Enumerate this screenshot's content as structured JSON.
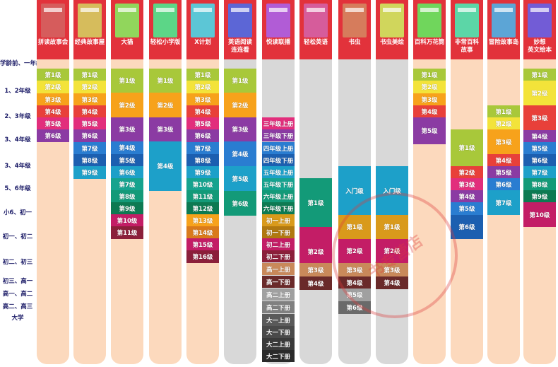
{
  "grades": [
    "学龄前、一年级",
    "1、2年级",
    "2、3年级",
    "3、4年级",
    "3、4年级",
    "5、6年级",
    "小6、初一",
    "初一、初二",
    "初二、初三",
    "初三、高一",
    "高一、高二",
    "高二、高三",
    "大学"
  ],
  "colors": {
    "levels": [
      "#a8c83a",
      "#f4b400",
      "#e8403a",
      "#c31d66",
      "#7a3a9a",
      "#2a7dd1",
      "#1da0c9",
      "#139a78",
      "#3c8c3a",
      "#8cbe2e",
      "#e88820",
      "#c82a78",
      "#6a2a2a"
    ],
    "ladder": [
      "#a8c83a",
      "#f3e33a",
      "#f7a21b",
      "#e8403a",
      "#e22e7c",
      "#8b3ba3"
    ]
  },
  "columns": [
    {
      "title": "拼读故事会",
      "head": "#e2323b",
      "track": "#fcd9bd",
      "cells": [
        [
          "第1级",
          97,
          18,
          "#a8c83a"
        ],
        [
          "第2级",
          114,
          18,
          "#f3e33a"
        ],
        [
          "第3级",
          132,
          18,
          "#f7a21b"
        ],
        [
          "第4级",
          149,
          18,
          "#e8403a"
        ],
        [
          "第5级",
          166,
          18,
          "#e22e7c"
        ],
        [
          "第6级",
          183,
          18,
          "#8b3ba3"
        ]
      ]
    },
    {
      "title": "经典故事屋",
      "head": "#e2323b",
      "track": "#fcd9bd",
      "cells": [
        [
          "第1级",
          97,
          18,
          "#a8c83a"
        ],
        [
          "第2级",
          114,
          18,
          "#f3e33a"
        ],
        [
          "第3级",
          132,
          18,
          "#f7a21b"
        ],
        [
          "第4级",
          149,
          18,
          "#e8403a"
        ],
        [
          "第5级",
          166,
          18,
          "#e22e7c"
        ],
        [
          "第6级",
          183,
          18,
          "#8b3ba3"
        ],
        [
          "第7级",
          201,
          18,
          "#2a7dd1"
        ],
        [
          "第8级",
          218,
          18,
          "#1c5fb0"
        ],
        [
          "第9级",
          235,
          18,
          "#1da0c9"
        ]
      ]
    },
    {
      "title": "大猫",
      "head": "#e2323b",
      "track": "#fcd9bd",
      "cells": [
        [
          "第1级",
          97,
          34,
          "#a8c83a"
        ],
        [
          "第2级",
          131,
          35,
          "#f7a21b"
        ],
        [
          "第3级",
          166,
          34,
          "#8b3ba3"
        ],
        [
          "第4级",
          200,
          18,
          "#2a7dd1"
        ],
        [
          "第5级",
          218,
          18,
          "#1c5fb0"
        ],
        [
          "第6级",
          235,
          18,
          "#1da0c9"
        ],
        [
          "第7级",
          252,
          18,
          "#15a38f"
        ],
        [
          "第8级",
          269,
          18,
          "#139a78"
        ],
        [
          "第9级",
          286,
          18,
          "#0d7a52"
        ],
        [
          "第10级",
          303,
          18,
          "#c31d66"
        ],
        [
          "第11级",
          320,
          18,
          "#8b1f3a"
        ]
      ]
    },
    {
      "title": "轻松小学版",
      "head": "#e2323b",
      "track": "#fcd9bd",
      "cells": [
        [
          "第1级",
          97,
          34,
          "#a8c83a"
        ],
        [
          "第2级",
          131,
          35,
          "#f7a21b"
        ],
        [
          "第3级",
          166,
          34,
          "#8b3ba3"
        ],
        [
          "第4级",
          200,
          70,
          "#1da0c9"
        ]
      ]
    },
    {
      "title": "X计划",
      "head": "#e2323b",
      "track": "#fcd9bd",
      "cells": [
        [
          "第1级",
          97,
          18,
          "#a8c83a"
        ],
        [
          "第2级",
          114,
          18,
          "#f3e33a"
        ],
        [
          "第3级",
          132,
          18,
          "#f7a21b"
        ],
        [
          "第4级",
          149,
          18,
          "#e8403a"
        ],
        [
          "第5级",
          166,
          18,
          "#e22e7c"
        ],
        [
          "第6级",
          183,
          18,
          "#8b3ba3"
        ],
        [
          "第7级",
          201,
          18,
          "#2a7dd1"
        ],
        [
          "第8级",
          218,
          18,
          "#1c5fb0"
        ],
        [
          "第9级",
          235,
          18,
          "#1da0c9"
        ],
        [
          "第10级",
          252,
          18,
          "#15a38f"
        ],
        [
          "第11级",
          269,
          18,
          "#139a78"
        ],
        [
          "第12级",
          286,
          18,
          "#0d7a52"
        ],
        [
          "第13级",
          303,
          18,
          "#f7a21b"
        ],
        [
          "第14级",
          320,
          18,
          "#d97a1b"
        ],
        [
          "第15级",
          337,
          18,
          "#c31d66"
        ],
        [
          "第16级",
          354,
          18,
          "#8b1f3a"
        ]
      ]
    },
    {
      "title": "英语阅读\n连连看",
      "head": "#e2323b",
      "track": "#d8d8d8",
      "cells": [
        [
          "第1级",
          97,
          34,
          "#a8c83a"
        ],
        [
          "第2级",
          131,
          35,
          "#f7a21b"
        ],
        [
          "第3级",
          166,
          34,
          "#8b3ba3"
        ],
        [
          "第4级",
          200,
          35,
          "#2a7dd1"
        ],
        [
          "第5级",
          235,
          35,
          "#1da0c9"
        ],
        [
          "第6级",
          270,
          35,
          "#139a78"
        ]
      ]
    },
    {
      "title": "悦读联播",
      "head": "#e2323b",
      "track": "#d8d8d8",
      "cells": [
        [
          "三年级上册",
          166,
          17,
          "#e22e7c"
        ],
        [
          "三年级下册",
          183,
          17,
          "#8b3ba3"
        ],
        [
          "四年级上册",
          201,
          17,
          "#2a7dd1"
        ],
        [
          "四年级下册",
          218,
          17,
          "#1c5fb0"
        ],
        [
          "五年级上册",
          235,
          17,
          "#1da0c9"
        ],
        [
          "五年级下册",
          252,
          17,
          "#15a38f"
        ],
        [
          "六年级上册",
          269,
          17,
          "#139a78"
        ],
        [
          "六年级下册",
          286,
          17,
          "#0d7a52"
        ],
        [
          "初一上册",
          303,
          17,
          "#d99a1b"
        ],
        [
          "初一下册",
          320,
          17,
          "#b07810"
        ],
        [
          "初二上册",
          337,
          17,
          "#c31d66"
        ],
        [
          "初二下册",
          354,
          17,
          "#8b1f3a"
        ],
        [
          "高一上册",
          372,
          17,
          "#c9895a"
        ],
        [
          "高一下册",
          390,
          17,
          "#6a2a2a"
        ],
        [
          "高二上册",
          408,
          17,
          "#a0a0a0"
        ],
        [
          "高二下册",
          426,
          17,
          "#808080"
        ],
        [
          "大一上册",
          444,
          17,
          "#5a5a5a"
        ],
        [
          "大一下册",
          461,
          17,
          "#4a4a4a"
        ],
        [
          "大二上册",
          478,
          17,
          "#3a3a3a"
        ],
        [
          "大二下册",
          495,
          17,
          "#2a2a2a"
        ]
      ]
    },
    {
      "title": "轻松英语",
      "head": "#e2323b",
      "track": "#d8d8d8",
      "cells": [
        [
          "第1级",
          252,
          69,
          "#139a78"
        ],
        [
          "第2级",
          321,
          69,
          "#c31d66"
        ],
        [
          "第3级",
          372,
          19,
          "#c9895a"
        ],
        [
          "第4级",
          391,
          19,
          "#6a2a2a"
        ]
      ]
    },
    {
      "title": "书虫",
      "head": "#e2323b",
      "track": "#d8d8d8",
      "cells": [
        [
          "入门级",
          235,
          69,
          "#1da0c9"
        ],
        [
          "第1级",
          304,
          34,
          "#d99a1b"
        ],
        [
          "第2级",
          338,
          34,
          "#c31d66"
        ],
        [
          "第3级",
          372,
          19,
          "#c9895a"
        ],
        [
          "第4级",
          391,
          18,
          "#6a2a2a"
        ],
        [
          "第5级",
          408,
          18,
          "#a0a0a0"
        ],
        [
          "第6级",
          426,
          18,
          "#6a6a6a"
        ]
      ]
    },
    {
      "title": "书虫美绘",
      "head": "#e2323b",
      "track": "#d8d8d8",
      "cells": [
        [
          "入门级",
          235,
          69,
          "#1da0c9"
        ],
        [
          "第1级",
          304,
          34,
          "#d99a1b"
        ],
        [
          "第2级",
          338,
          34,
          "#c31d66"
        ],
        [
          "第3级",
          372,
          19,
          "#c9895a"
        ],
        [
          "第4级",
          391,
          18,
          "#6a2a2a"
        ]
      ]
    },
    {
      "title": "百科万花筒",
      "head": "#e2323b",
      "track": "#fcd9bd",
      "cells": [
        [
          "第1级",
          97,
          18,
          "#a8c83a"
        ],
        [
          "第2级",
          114,
          18,
          "#f3e33a"
        ],
        [
          "第3级",
          132,
          18,
          "#f7a21b"
        ],
        [
          "第4级",
          149,
          18,
          "#e8403a"
        ],
        [
          "第5级",
          166,
          38,
          "#8b3ba3"
        ]
      ]
    },
    {
      "title": "非常百科\n故事",
      "head": "#e2323b",
      "track": "#fcd9bd",
      "cells": [
        [
          "第1级",
          183,
          52,
          "#a8c83a"
        ],
        [
          "第2级",
          235,
          18,
          "#e8403a"
        ],
        [
          "第3级",
          252,
          18,
          "#e22e7c"
        ],
        [
          "第4级",
          269,
          18,
          "#8b3ba3"
        ],
        [
          "第5级",
          286,
          18,
          "#2a7dd1"
        ],
        [
          "第6级",
          304,
          34,
          "#1c5fb0"
        ]
      ]
    },
    {
      "title": "冒险故事岛",
      "head": "#e2323b",
      "track": "#fcd9bd",
      "cells": [
        [
          "第1级",
          149,
          18,
          "#a8c83a"
        ],
        [
          "第2级",
          166,
          18,
          "#f3e33a"
        ],
        [
          "第3级",
          183,
          35,
          "#f7a21b"
        ],
        [
          "第4级",
          218,
          17,
          "#e8403a"
        ],
        [
          "第5级",
          235,
          17,
          "#8b3ba3"
        ],
        [
          "第6级",
          252,
          17,
          "#2a7dd1"
        ],
        [
          "第7级",
          269,
          35,
          "#1da0c9"
        ]
      ]
    },
    {
      "title": "妙想\n英文绘本",
      "head": "#e2323b",
      "track": "#fcd9bd",
      "cells": [
        [
          "第1级",
          97,
          18,
          "#a8c83a"
        ],
        [
          "第2级",
          114,
          35,
          "#f3e33a"
        ],
        [
          "第3级",
          149,
          35,
          "#e8403a"
        ],
        [
          "第4级",
          184,
          17,
          "#8b3ba3"
        ],
        [
          "第5级",
          201,
          17,
          "#2a7dd1"
        ],
        [
          "第6级",
          218,
          17,
          "#1c5fb0"
        ],
        [
          "第7级",
          235,
          17,
          "#1da0c9"
        ],
        [
          "第8级",
          252,
          17,
          "#139a78"
        ],
        [
          "第9级",
          269,
          17,
          "#0d7a52"
        ],
        [
          "第10级",
          286,
          35,
          "#c31d66"
        ]
      ]
    }
  ],
  "watermark": "书专营店"
}
